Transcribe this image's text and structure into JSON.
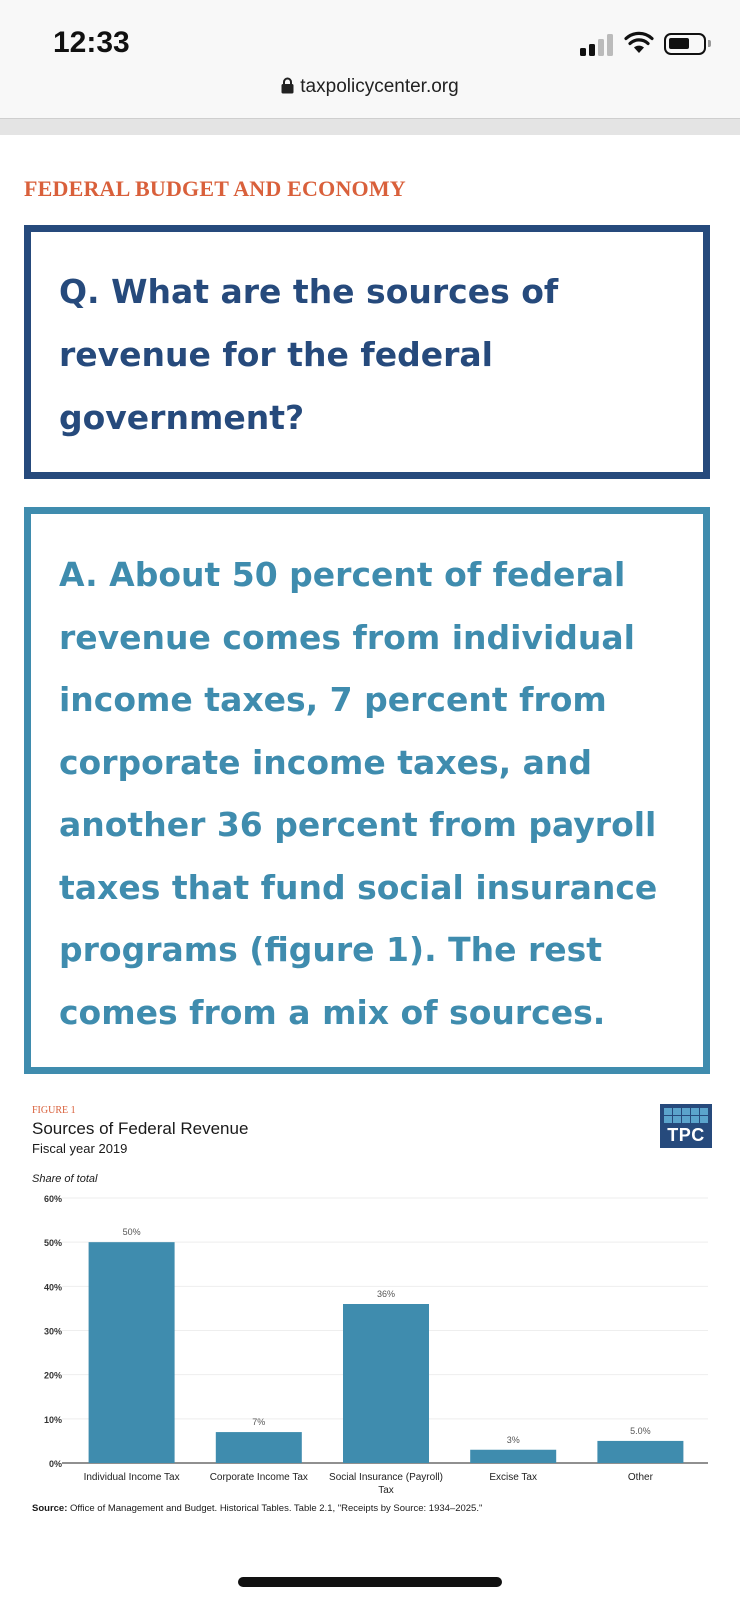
{
  "status_bar": {
    "time": "12:33",
    "url": "taxpolicycenter.org"
  },
  "article": {
    "section_label": "FEDERAL BUDGET AND ECONOMY",
    "question": "Q. What are the sources of revenue for the federal government?",
    "answer": "A. About 50 percent of federal revenue comes from individual income taxes, 7 percent from corporate income taxes, and another 36 percent from payroll taxes that fund social insurance programs (figure 1). The rest comes from a mix of sources.",
    "colors": {
      "section": "#d9603b",
      "question": "#264a7c",
      "answer": "#3f8cae"
    }
  },
  "figure": {
    "label": "FIGURE 1",
    "title": "Sources of Federal Revenue",
    "subtitle": "Fiscal year 2019",
    "logo_text": "TPC",
    "source_label": "Source:",
    "source_text": "Office of Management and Budget. Historical Tables. Table 2.1, \"Receipts by Source: 1934–2025.\""
  },
  "chart_data": {
    "type": "bar",
    "ylabel": "Share of total",
    "ylim": [
      0,
      60
    ],
    "yticks": [
      "0%",
      "10%",
      "20%",
      "30%",
      "40%",
      "50%",
      "60%"
    ],
    "categories": [
      "Individual Income Tax",
      "Corporate Income Tax",
      "Social Insurance (Payroll) Tax",
      "Excise Tax",
      "Other"
    ],
    "values": [
      50,
      7,
      36,
      3,
      5.0
    ],
    "data_labels": [
      "50%",
      "7%",
      "36%",
      "3%",
      "5.0%"
    ],
    "bar_color": "#3f8cae",
    "grid": true
  }
}
